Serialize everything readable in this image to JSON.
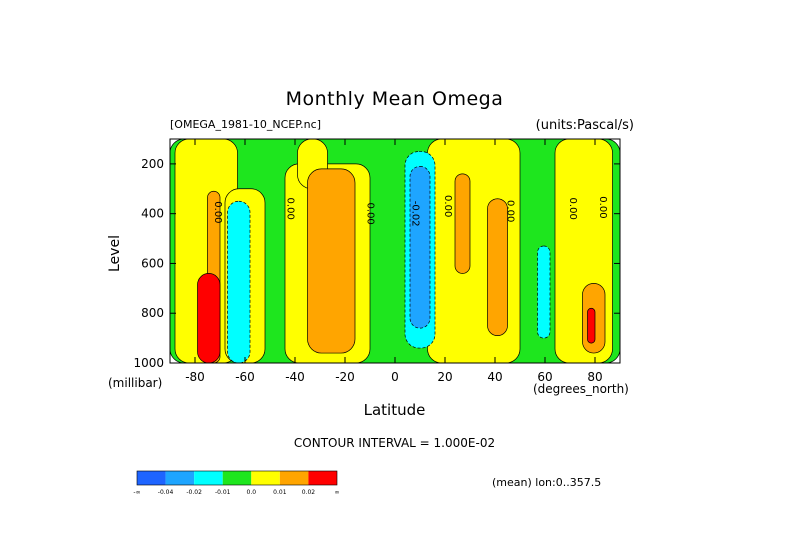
{
  "chart_data": {
    "type": "heatmap",
    "title": "Monthly Mean Omega",
    "source_label": "[OMEGA_1981-10_NCEP.nc]",
    "units_label": "(units:Pascal/s)",
    "ylabel": "Level",
    "yunit": "(millibar)",
    "xlabel": "Latitude",
    "xunit": "(degrees_north)",
    "contour_interval": "CONTOUR INTERVAL = 1.000E-02",
    "mean_note": "(mean) lon:0..357.5",
    "xlim": [
      -90,
      90
    ],
    "ylim": [
      1000,
      100
    ],
    "x_ticks": [
      -80,
      -60,
      -40,
      -20,
      0,
      20,
      40,
      60,
      80
    ],
    "y_ticks": [
      200,
      400,
      600,
      800,
      1000
    ],
    "contour_labels": [
      {
        "text": "0.00",
        "lat": -72,
        "lev": 395
      },
      {
        "text": "0.00",
        "lat": -43,
        "lev": 380
      },
      {
        "text": "0.00",
        "lat": -11,
        "lev": 400
      },
      {
        "text": "-0.02",
        "lat": 7,
        "lev": 400
      },
      {
        "text": "0.00",
        "lat": 20,
        "lev": 370
      },
      {
        "text": "0.00",
        "lat": 45,
        "lev": 390
      },
      {
        "text": "0.00",
        "lat": 70,
        "lev": 380
      },
      {
        "text": "0.00",
        "lat": 82,
        "lev": 375
      }
    ],
    "regions": [
      {
        "category": "green",
        "lat_min": -90,
        "lat_max": 90,
        "lev_top": 100,
        "lev_bot": 1000
      },
      {
        "category": "yellow",
        "lat_min": -88,
        "lat_max": -63,
        "lev_top": 100,
        "lev_bot": 1000
      },
      {
        "category": "yellow",
        "lat_min": -68,
        "lat_max": -52,
        "lev_top": 300,
        "lev_bot": 1000
      },
      {
        "category": "yellow",
        "lat_min": -44,
        "lat_max": -10,
        "lev_top": 200,
        "lev_bot": 1000
      },
      {
        "category": "yellow",
        "lat_min": -39,
        "lat_max": -27,
        "lev_top": 100,
        "lev_bot": 300
      },
      {
        "category": "yellow",
        "lat_min": 13,
        "lat_max": 50,
        "lev_top": 100,
        "lev_bot": 1000
      },
      {
        "category": "yellow",
        "lat_min": 64,
        "lat_max": 87,
        "lev_top": 100,
        "lev_bot": 1000
      },
      {
        "category": "orange",
        "lat_min": -75,
        "lat_max": -70,
        "lev_top": 310,
        "lev_bot": 1000
      },
      {
        "category": "orange",
        "lat_min": -35,
        "lat_max": -16,
        "lev_top": 220,
        "lev_bot": 960
      },
      {
        "category": "orange",
        "lat_min": 24,
        "lat_max": 30,
        "lev_top": 240,
        "lev_bot": 640
      },
      {
        "category": "orange",
        "lat_min": 37,
        "lat_max": 45,
        "lev_top": 340,
        "lev_bot": 890
      },
      {
        "category": "orange",
        "lat_min": 75,
        "lat_max": 84,
        "lev_top": 680,
        "lev_bot": 960
      },
      {
        "category": "red",
        "lat_min": -79,
        "lat_max": -70,
        "lev_top": 640,
        "lev_bot": 1000
      },
      {
        "category": "red",
        "lat_min": 77,
        "lat_max": 80,
        "lev_top": 780,
        "lev_bot": 920
      },
      {
        "category": "cyan",
        "lat_min": -67,
        "lat_max": -58,
        "lev_top": 350,
        "lev_bot": 1000
      },
      {
        "category": "cyan",
        "lat_min": 4,
        "lat_max": 16,
        "lev_top": 150,
        "lev_bot": 940
      },
      {
        "category": "cyan",
        "lat_min": 57,
        "lat_max": 62,
        "lev_top": 530,
        "lev_bot": 900
      },
      {
        "category": "blue",
        "lat_min": 6,
        "lat_max": 14,
        "lev_top": 210,
        "lev_bot": 860
      }
    ],
    "colorbar": {
      "bins": [
        {
          "category": "dark-blue",
          "color": "#1e64ff"
        },
        {
          "category": "blue",
          "color": "#1ea5ff"
        },
        {
          "category": "cyan",
          "color": "#00ffff"
        },
        {
          "category": "green",
          "color": "#1ee61e"
        },
        {
          "category": "yellow",
          "color": "#ffff00"
        },
        {
          "category": "orange",
          "color": "#ffa500"
        },
        {
          "category": "red",
          "color": "#ff0000"
        }
      ],
      "labels": [
        "-∞",
        "-0.04",
        "-0.02",
        "-0.01",
        "0.0",
        "0.01",
        "0.02",
        "∞"
      ]
    }
  }
}
